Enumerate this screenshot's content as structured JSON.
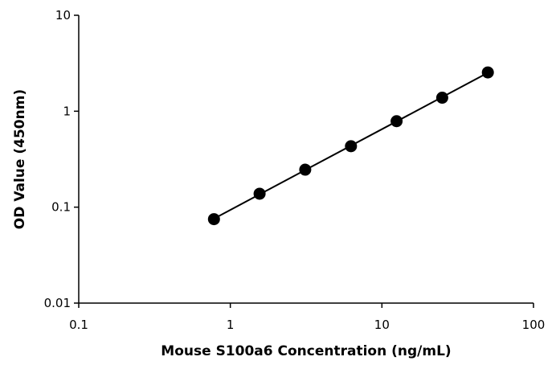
{
  "chart_data": {
    "type": "scatter",
    "title": "",
    "xlabel": "Mouse S100a6 Concentration (ng/mL)",
    "ylabel": "OD Value (450nm)",
    "x_scale": "log",
    "y_scale": "log",
    "xlim": [
      0.1,
      100
    ],
    "ylim": [
      0.01,
      10
    ],
    "x_ticks": [
      "0.1",
      "1",
      "10",
      "100"
    ],
    "y_ticks": [
      "0.01",
      "0.1",
      "1",
      "10"
    ],
    "grid": false,
    "legend": "none",
    "fit_line": "power",
    "colors": {
      "points": "#000000",
      "line": "#000000"
    },
    "series": [
      {
        "x": [
          0.78,
          1.56,
          3.12,
          6.25,
          12.5,
          25,
          50
        ],
        "y": [
          0.075,
          0.138,
          0.246,
          0.432,
          0.787,
          1.383,
          2.538
        ]
      }
    ]
  }
}
